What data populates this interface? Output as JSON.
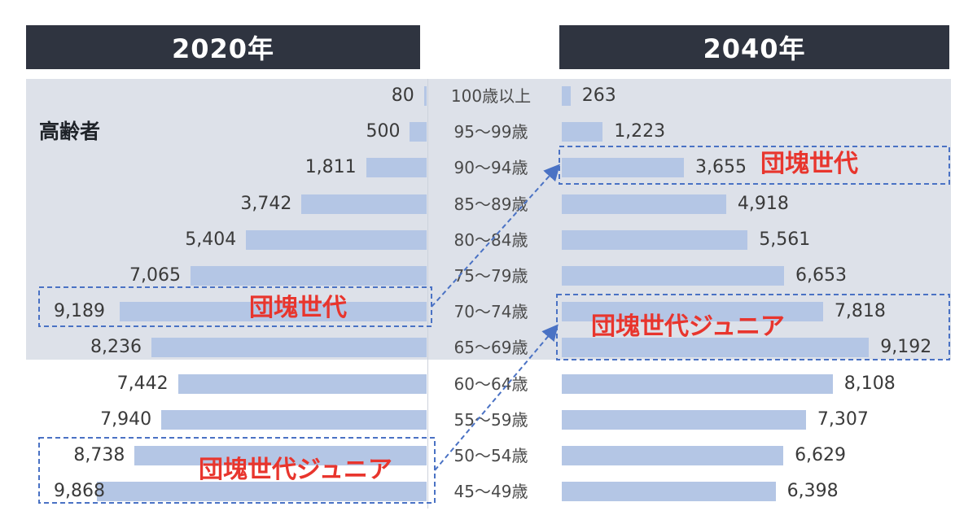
{
  "headers": {
    "left": "2020年",
    "right": "2040年"
  },
  "elderly_label": "高齢者",
  "callouts": {
    "dankai_2020": "団塊世代",
    "dankai_junior_2020": "団塊世代ジュニア",
    "dankai_2040": "団塊世代",
    "dankai_junior_2040": "団塊世代ジュニア"
  },
  "colors": {
    "bar": "#b4c6e5",
    "header": "#2f3440",
    "band": "#dde1e9",
    "callout": "#e8352d",
    "dashed": "#4a72c4"
  },
  "chart_data": {
    "type": "bar",
    "orientation": "horizontal",
    "categories": [
      "100歳以上",
      "95〜99歳",
      "90〜94歳",
      "85〜89歳",
      "80〜84歳",
      "75〜79歳",
      "70〜74歳",
      "65〜69歳",
      "60〜64歳",
      "55〜59歳",
      "50〜54歳",
      "45〜49歳"
    ],
    "series": [
      {
        "name": "2020年",
        "values": [
          80,
          500,
          1811,
          3742,
          5404,
          7065,
          9189,
          8236,
          7442,
          7940,
          8738,
          9868
        ]
      },
      {
        "name": "2040年",
        "values": [
          263,
          1223,
          3655,
          4918,
          5561,
          6653,
          7818,
          9192,
          8108,
          7307,
          6629,
          6398
        ]
      }
    ],
    "value_labels": {
      "2020年": [
        "80",
        "500",
        "1,811",
        "3,742",
        "5,404",
        "7,065",
        "9,189",
        "8,236",
        "7,442",
        "7,940",
        "8,738",
        "9,868"
      ],
      "2040年": [
        "263",
        "1,223",
        "3,655",
        "4,918",
        "5,561",
        "6,653",
        "7,818",
        "9,192",
        "8,108",
        "7,307",
        "6,629",
        "6,398"
      ]
    },
    "xlim": [
      0,
      9868
    ],
    "grid": false,
    "legend": "none"
  }
}
